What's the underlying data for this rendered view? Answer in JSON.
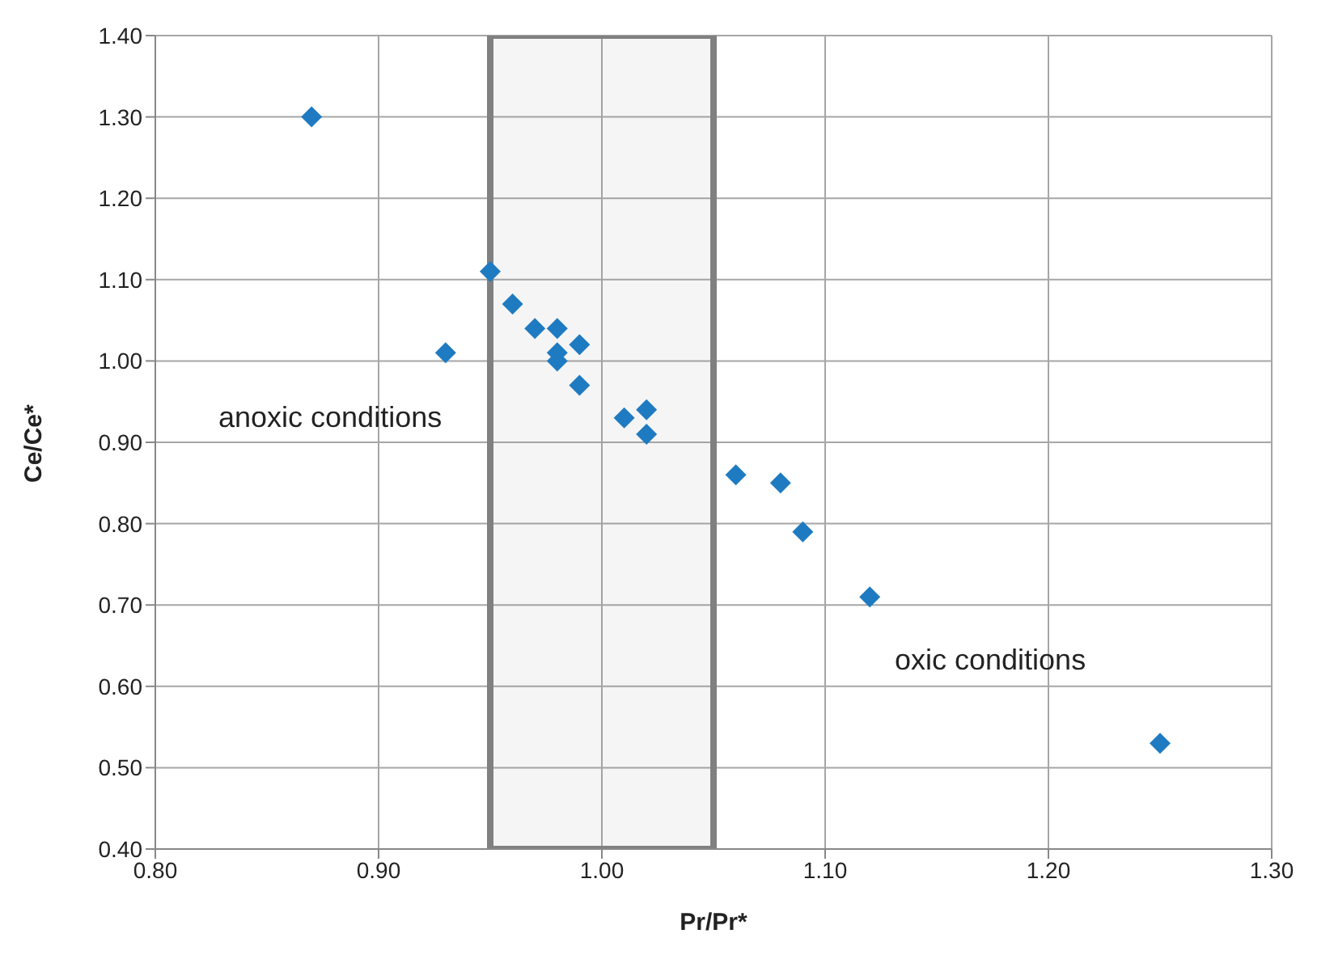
{
  "chart_data": {
    "type": "scatter",
    "xlabel": "Pr/Pr*",
    "ylabel": "Ce/Ce*",
    "x": [
      0.87,
      0.93,
      0.95,
      0.96,
      0.97,
      0.98,
      0.98,
      0.98,
      0.99,
      0.99,
      1.01,
      1.02,
      1.02,
      1.06,
      1.08,
      1.09,
      1.12,
      1.25
    ],
    "series": [
      {
        "color": "#1f7bc1",
        "values": [
          1.3,
          1.01,
          1.11,
          1.07,
          1.04,
          1.04,
          1.01,
          1.0,
          1.02,
          0.97,
          0.93,
          0.94,
          0.91,
          0.86,
          0.85,
          0.79,
          0.71,
          0.53
        ]
      }
    ],
    "xlim": [
      0.8,
      1.3
    ],
    "xticks": [
      {
        "value": 0.8,
        "label": "0.80"
      },
      {
        "value": 0.9,
        "label": "0.90"
      },
      {
        "value": 1.0,
        "label": "1.00"
      },
      {
        "value": 1.1,
        "label": "1.10"
      },
      {
        "value": 1.2,
        "label": "1.20"
      },
      {
        "value": 1.3,
        "label": "1.30"
      }
    ],
    "ylim": [
      0.4,
      1.4
    ],
    "yticks": [
      {
        "value": 0.4,
        "label": "0.40"
      },
      {
        "value": 0.5,
        "label": "0.50"
      },
      {
        "value": 0.6,
        "label": "0.60"
      },
      {
        "value": 0.7,
        "label": "0.70"
      },
      {
        "value": 0.8,
        "label": "0.80"
      },
      {
        "value": 0.9,
        "label": "0.90"
      },
      {
        "value": 1.0,
        "label": "1.00"
      },
      {
        "value": 1.1,
        "label": "1.10"
      },
      {
        "value": 1.2,
        "label": "1.20"
      },
      {
        "value": 1.3,
        "label": "1.30"
      },
      {
        "value": 1.4,
        "label": "1.40"
      }
    ],
    "bands": [
      {
        "axis": "x",
        "from": 0.95,
        "to": 1.05,
        "color": "#808080"
      }
    ],
    "annotations": [
      "anoxic conditions",
      "oxic conditions"
    ],
    "grid": true,
    "marker": "diamond",
    "legend": false
  }
}
